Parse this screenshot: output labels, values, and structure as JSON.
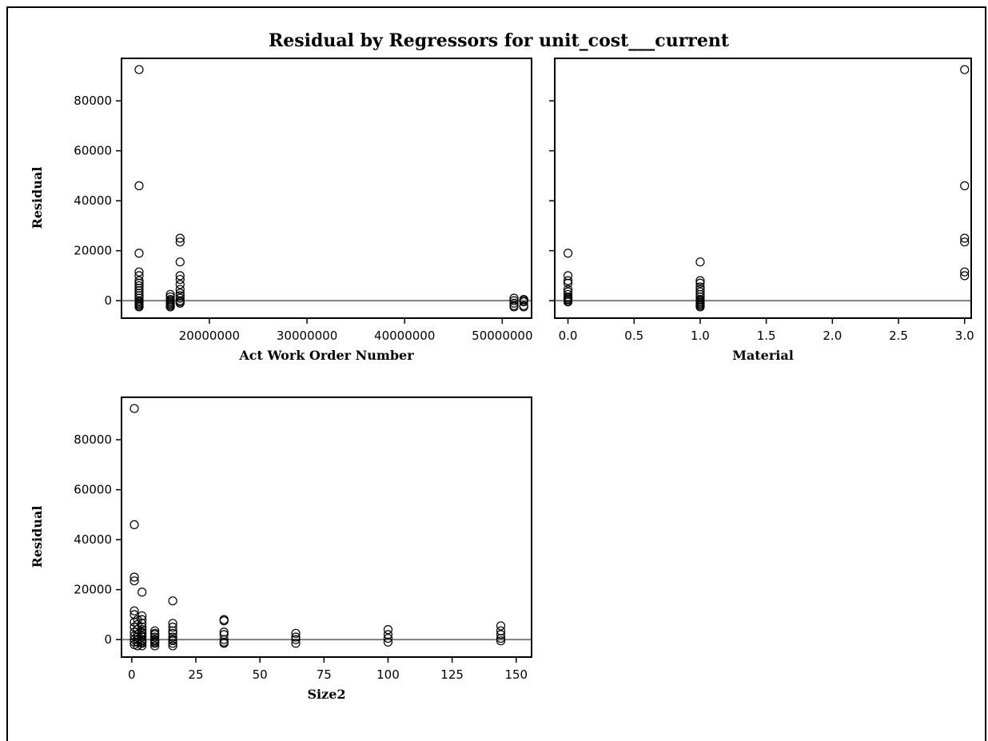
{
  "title": "Residual by Regressors for unit_cost___current",
  "chart_data": [
    {
      "type": "scatter",
      "xlabel": "Act Work Order Number",
      "ylabel": "Residual",
      "xlim": [
        11000000,
        53000000
      ],
      "ylim": [
        -7000,
        97000
      ],
      "xticks": [
        20000000,
        30000000,
        40000000,
        50000000
      ],
      "xtick_labels": [
        "20000000",
        "30000000",
        "40000000",
        "50000000"
      ],
      "yticks": [
        0,
        20000,
        40000,
        60000,
        80000
      ],
      "ytick_labels": [
        "0",
        "20000",
        "40000",
        "60000",
        "80000"
      ],
      "reference_line_y": 0,
      "series": [
        {
          "x": [
            12800000,
            12800000,
            12800000,
            12800000,
            12800000,
            12800000,
            12800000,
            12800000,
            12800000,
            12800000,
            12800000,
            12800000,
            12800000,
            12800000,
            12800000,
            12800000,
            12800000,
            12800000,
            12800000,
            16000000,
            16000000,
            16000000,
            16000000,
            16000000,
            16000000,
            16000000,
            16000000,
            16000000,
            17000000,
            17000000,
            17000000,
            17000000,
            17000000,
            17000000,
            17000000,
            17000000,
            17000000,
            17000000,
            17000000,
            17000000,
            17000000,
            51200000,
            51200000,
            51200000,
            51200000,
            51200000,
            52200000,
            52200000,
            52200000,
            52200000,
            52200000
          ],
          "y": [
            92500,
            46000,
            19000,
            11500,
            10000,
            8000,
            7000,
            6000,
            5000,
            4000,
            3000,
            2000,
            1000,
            0,
            -500,
            -1000,
            -1500,
            -2000,
            -2500,
            2500,
            1500,
            500,
            0,
            -500,
            -1000,
            -1500,
            -2000,
            -2500,
            25000,
            23500,
            15500,
            10000,
            8500,
            6500,
            4500,
            3000,
            2000,
            1000,
            0,
            -500,
            -1000,
            -2000,
            -2500,
            1000,
            0,
            -1000,
            -2000,
            -500,
            500,
            0,
            -2500
          ]
        }
      ]
    },
    {
      "type": "scatter",
      "xlabel": "Material",
      "ylabel": "",
      "xlim": [
        -0.1,
        3.05
      ],
      "ylim": [
        -7000,
        97000
      ],
      "xticks": [
        0,
        0.5,
        1,
        1.5,
        2,
        2.5,
        3
      ],
      "xtick_labels": [
        "0.0",
        "0.5",
        "1.0",
        "1.5",
        "2.0",
        "2.5",
        "3.0"
      ],
      "yticks": [
        0,
        20000,
        40000,
        60000,
        80000
      ],
      "ytick_labels": [],
      "reference_line_y": 0,
      "series": [
        {
          "x": [
            0,
            0,
            0,
            0,
            0,
            0,
            0,
            0,
            0,
            0,
            0,
            0,
            1,
            1,
            1,
            1,
            1,
            1,
            1,
            1,
            1,
            1,
            1,
            1,
            1,
            1,
            1,
            3,
            3,
            3,
            3,
            3,
            3
          ],
          "y": [
            19000,
            10000,
            8000,
            7000,
            4500,
            3500,
            2500,
            1500,
            1000,
            500,
            0,
            -500,
            15500,
            8000,
            7000,
            5500,
            4500,
            3500,
            2500,
            1500,
            500,
            0,
            -500,
            -1000,
            -1500,
            -2000,
            -2500,
            92500,
            46000,
            25000,
            23500,
            11500,
            10000
          ]
        }
      ]
    },
    {
      "type": "scatter",
      "xlabel": "Size2",
      "ylabel": "Residual",
      "xlim": [
        -4,
        156
      ],
      "ylim": [
        -7000,
        97000
      ],
      "xticks": [
        0,
        25,
        50,
        75,
        100,
        125,
        150
      ],
      "xtick_labels": [
        "0",
        "25",
        "50",
        "75",
        "100",
        "125",
        "150"
      ],
      "yticks": [
        0,
        20000,
        40000,
        60000,
        80000
      ],
      "ytick_labels": [
        "0",
        "20000",
        "40000",
        "60000",
        "80000"
      ],
      "reference_line_y": 0,
      "series": [
        {
          "x": [
            1,
            1,
            1,
            1,
            1,
            1,
            1,
            1,
            1,
            1,
            1,
            1,
            1,
            2.25,
            2.25,
            2.25,
            2.25,
            2.25,
            2.25,
            2.25,
            2.25,
            4,
            4,
            4,
            4,
            4,
            4,
            4,
            4,
            4,
            4,
            4,
            4,
            4,
            4,
            4,
            9,
            9,
            9,
            9,
            9,
            9,
            9,
            9,
            9,
            16,
            16,
            16,
            16,
            16,
            16,
            16,
            16,
            16,
            16,
            36,
            36,
            36,
            36,
            36,
            36,
            36,
            64,
            64,
            64,
            64,
            100,
            100,
            100,
            100,
            144,
            144,
            144,
            144,
            144
          ],
          "y": [
            92500,
            46000,
            25000,
            23500,
            11500,
            10000,
            7000,
            5000,
            3000,
            1500,
            0,
            -1000,
            -2000,
            8000,
            6000,
            4000,
            2000,
            1000,
            0,
            -1000,
            -2500,
            19000,
            9500,
            8000,
            6500,
            5000,
            4000,
            3000,
            2500,
            1500,
            1000,
            0,
            -500,
            -1000,
            -1500,
            -2500,
            3500,
            2500,
            2000,
            1000,
            0,
            -500,
            -1000,
            -1500,
            -2500,
            15500,
            6500,
            5000,
            3500,
            2500,
            1000,
            0,
            -500,
            -1500,
            -2500,
            8000,
            7500,
            3000,
            2000,
            0,
            -1000,
            -1500,
            2500,
            1000,
            0,
            -1500,
            4000,
            2000,
            500,
            -1000,
            5500,
            3500,
            2000,
            500,
            -500
          ]
        }
      ]
    }
  ]
}
